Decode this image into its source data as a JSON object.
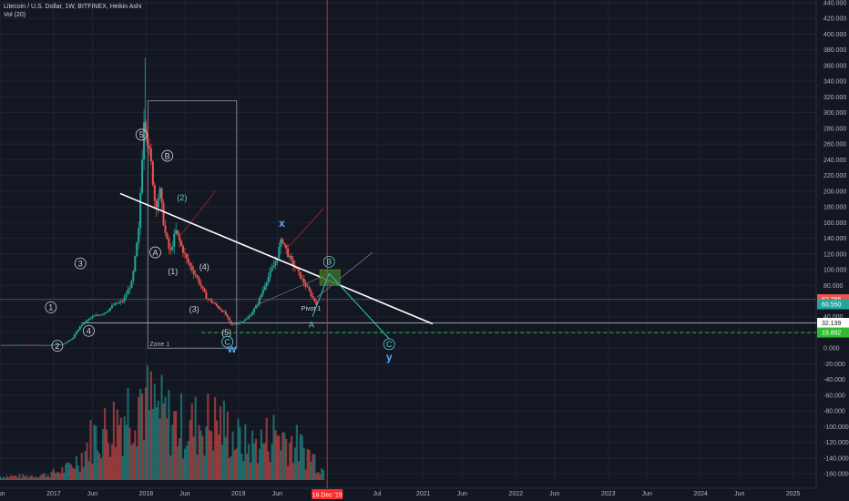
{
  "legend": {
    "title": "Litecoin / U.S. Dollar, 1W, BITFINEX, Heikin Ashi",
    "indicator": "Vol (20)"
  },
  "colors": {
    "background": "#131722",
    "grid": "#1f2433",
    "up_candle": "#26a69a",
    "down_candle": "#ef5350",
    "trendline": "#ffffff",
    "date_marker": "#ff2a2a",
    "support_line": "#26c443",
    "wave_path": "#26c6c6",
    "target_box": "#3d6b2a"
  },
  "price_badges": [
    {
      "label": "62.286",
      "bg": "#ef5350",
      "fg": "#ffffff",
      "value": 62.286
    },
    {
      "label": "60.550",
      "bg": "#26a69a",
      "fg": "#ffffff",
      "value": 60.55
    },
    {
      "label": "32.139",
      "bg": "#ffffff",
      "fg": "#131722",
      "value": 32.139
    },
    {
      "label": "19.892",
      "bg": "#2ebd2e",
      "fg": "#ffffff",
      "value": 19.892
    }
  ],
  "date_marker_label": "16 Dec '19",
  "annotations": {
    "zone": "Zone 1",
    "pivot": "Pivot 1"
  },
  "wave_labels": [
    {
      "text": "1",
      "circled": true,
      "x": 2016.97,
      "y": 52,
      "style": "wave"
    },
    {
      "text": "2",
      "circled": true,
      "x": 2017.04,
      "y": 3,
      "style": "wave"
    },
    {
      "text": "3",
      "circled": true,
      "x": 2017.29,
      "y": 108,
      "style": "wave"
    },
    {
      "text": "4",
      "circled": true,
      "x": 2017.38,
      "y": 22,
      "style": "wave"
    },
    {
      "text": "5",
      "circled": true,
      "x": 2017.95,
      "y": 272,
      "style": "wave"
    },
    {
      "text": "B",
      "circled": true,
      "x": 2018.23,
      "y": 245,
      "style": "wave"
    },
    {
      "text": "A",
      "circled": true,
      "x": 2018.1,
      "y": 122,
      "style": "wave"
    },
    {
      "text": "(2)",
      "circled": false,
      "x": 2018.39,
      "y": 192,
      "style": "wave-teal"
    },
    {
      "text": "(1)",
      "circled": false,
      "x": 2018.29,
      "y": 98,
      "style": "wave"
    },
    {
      "text": "(4)",
      "circled": false,
      "x": 2018.63,
      "y": 104,
      "style": "wave"
    },
    {
      "text": "(3)",
      "circled": false,
      "x": 2018.52,
      "y": 50,
      "style": "wave"
    },
    {
      "text": "(5)",
      "circled": false,
      "x": 2018.87,
      "y": 20,
      "style": "wave"
    },
    {
      "text": "C",
      "circled": true,
      "x": 2018.88,
      "y": 8,
      "style": "wave-teal"
    },
    {
      "text": "w",
      "circled": false,
      "x": 2018.93,
      "y": -2,
      "style": "wave-blue"
    },
    {
      "text": "x",
      "circled": false,
      "x": 2019.47,
      "y": 158,
      "style": "wave-blue"
    },
    {
      "text": "B",
      "circled": true,
      "x": 2019.98,
      "y": 110,
      "style": "wave-teal"
    },
    {
      "text": "A",
      "circled": false,
      "x": 2019.79,
      "y": 30,
      "style": "wave-teal"
    },
    {
      "text": "C",
      "circled": true,
      "x": 2020.63,
      "y": 5,
      "style": "wave-teal"
    },
    {
      "text": "y",
      "circled": false,
      "x": 2020.63,
      "y": -12,
      "style": "wave-blue"
    }
  ],
  "chart_data": {
    "type": "candlestick",
    "xlim": [
      2016.42,
      2025.25
    ],
    "ylim": [
      -168,
      440
    ],
    "y_axis_ticks": [
      "440.000",
      "420.000",
      "400.000",
      "380.000",
      "360.000",
      "340.000",
      "320.000",
      "300.000",
      "280.000",
      "260.000",
      "240.000",
      "220.000",
      "200.000",
      "180.000",
      "160.000",
      "140.000",
      "120.000",
      "100.000",
      "80.000",
      "60.000",
      "40.000",
      "20.000",
      "0.000",
      "-20.000",
      "-40.000",
      "-60.000",
      "-80.000",
      "-100.000",
      "-120.000",
      "-140.000",
      "-160.000"
    ],
    "x_axis_ticks": [
      {
        "label": "Jun",
        "x": 2016.42
      },
      {
        "label": "2017",
        "x": 2017.0
      },
      {
        "label": "Jun",
        "x": 2017.42
      },
      {
        "label": "2018",
        "x": 2018.0
      },
      {
        "label": "Jun",
        "x": 2018.42
      },
      {
        "label": "2019",
        "x": 2019.0
      },
      {
        "label": "Jun",
        "x": 2019.42
      },
      {
        "label": "Jul",
        "x": 2020.5
      },
      {
        "label": "2021",
        "x": 2021.0
      },
      {
        "label": "Jun",
        "x": 2021.42
      },
      {
        "label": "2022",
        "x": 2022.0
      },
      {
        "label": "Jun",
        "x": 2022.42
      },
      {
        "label": "2023",
        "x": 2023.0
      },
      {
        "label": "Jun",
        "x": 2023.42
      },
      {
        "label": "2024",
        "x": 2024.0
      },
      {
        "label": "Jun",
        "x": 2024.42
      },
      {
        "label": "2025",
        "x": 2025.0
      }
    ],
    "price_path": [
      [
        2016.42,
        4
      ],
      [
        2016.7,
        4
      ],
      [
        2016.95,
        4
      ],
      [
        2017.1,
        5
      ],
      [
        2017.2,
        12
      ],
      [
        2017.3,
        30
      ],
      [
        2017.42,
        40
      ],
      [
        2017.55,
        45
      ],
      [
        2017.65,
        55
      ],
      [
        2017.75,
        60
      ],
      [
        2017.85,
        85
      ],
      [
        2017.92,
        150
      ],
      [
        2017.98,
        300
      ],
      [
        2018.02,
        260
      ],
      [
        2018.06,
        230
      ],
      [
        2018.1,
        180
      ],
      [
        2018.15,
        200
      ],
      [
        2018.2,
        150
      ],
      [
        2018.26,
        120
      ],
      [
        2018.32,
        150
      ],
      [
        2018.38,
        130
      ],
      [
        2018.45,
        110
      ],
      [
        2018.55,
        90
      ],
      [
        2018.65,
        65
      ],
      [
        2018.75,
        55
      ],
      [
        2018.85,
        45
      ],
      [
        2018.92,
        30
      ],
      [
        2019.0,
        32
      ],
      [
        2019.1,
        38
      ],
      [
        2019.2,
        55
      ],
      [
        2019.3,
        85
      ],
      [
        2019.4,
        110
      ],
      [
        2019.47,
        140
      ],
      [
        2019.55,
        115
      ],
      [
        2019.65,
        95
      ],
      [
        2019.75,
        75
      ],
      [
        2019.85,
        55
      ]
    ],
    "volume_path": [
      [
        2016.42,
        4
      ],
      [
        2016.7,
        4
      ],
      [
        2016.95,
        6
      ],
      [
        2017.15,
        12
      ],
      [
        2017.3,
        25
      ],
      [
        2017.42,
        45
      ],
      [
        2017.6,
        55
      ],
      [
        2017.8,
        75
      ],
      [
        2017.92,
        95
      ],
      [
        2018.0,
        80
      ],
      [
        2018.15,
        70
      ],
      [
        2018.3,
        60
      ],
      [
        2018.45,
        55
      ],
      [
        2018.6,
        60
      ],
      [
        2018.8,
        60
      ],
      [
        2018.95,
        45
      ],
      [
        2019.1,
        35
      ],
      [
        2019.25,
        40
      ],
      [
        2019.4,
        50
      ],
      [
        2019.5,
        45
      ],
      [
        2019.65,
        35
      ],
      [
        2019.8,
        25
      ],
      [
        2019.92,
        10
      ]
    ],
    "volume_ylim": [
      0,
      120
    ],
    "trendline": [
      [
        2017.72,
        197
      ],
      [
        2021.1,
        31
      ]
    ],
    "support_level": 19.892,
    "white_level": 32.139,
    "date_marker_x": 2019.96,
    "zone_box": {
      "x0": 2018.02,
      "x1": 2018.98,
      "y0": 0,
      "y1": 315
    },
    "target_box": {
      "x0": 2019.88,
      "x1": 2020.1,
      "y0": 80,
      "y1": 100
    },
    "wave_path": [
      [
        2019.8,
        40
      ],
      [
        2019.98,
        95
      ],
      [
        2020.63,
        12
      ]
    ],
    "channel_lines": [
      [
        [
          2018.35,
          140
        ],
        [
          2018.75,
          200
        ]
      ],
      [
        [
          2019.55,
          130
        ],
        [
          2019.92,
          178
        ]
      ],
      [
        [
          2019.85,
          65
        ],
        [
          2020.45,
          122
        ]
      ]
    ]
  }
}
